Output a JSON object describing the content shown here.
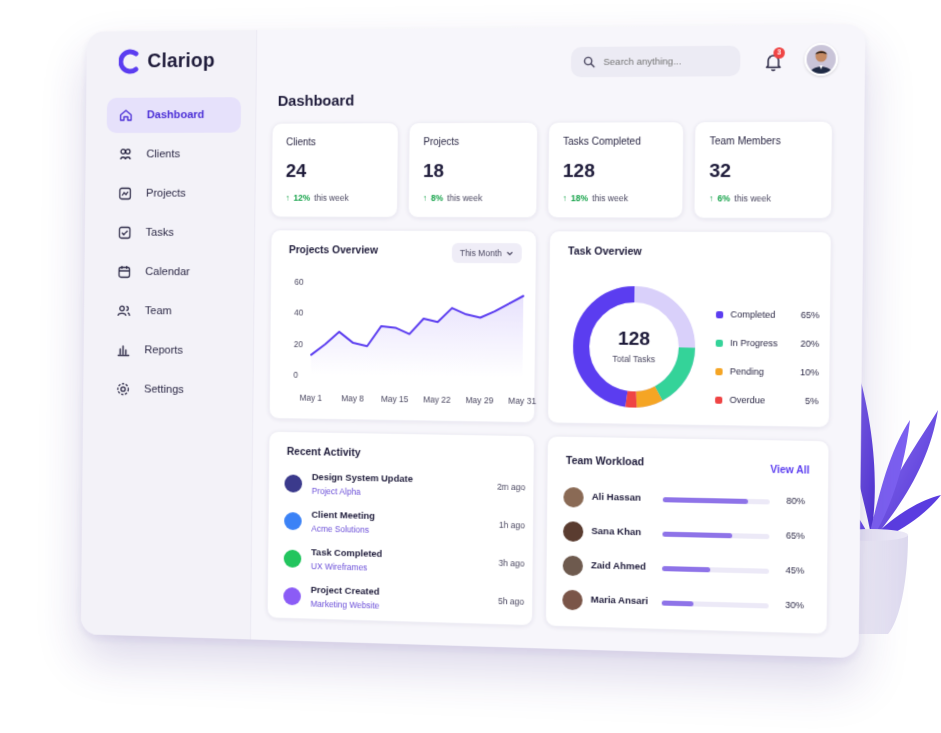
{
  "brand": {
    "name": "Clariop"
  },
  "sidebar": {
    "items": [
      {
        "label": "Dashboard",
        "icon": "home-icon",
        "active": true
      },
      {
        "label": "Clients",
        "icon": "clients-icon"
      },
      {
        "label": "Projects",
        "icon": "projects-icon"
      },
      {
        "label": "Tasks",
        "icon": "tasks-icon"
      },
      {
        "label": "Calendar",
        "icon": "calendar-icon"
      },
      {
        "label": "Team",
        "icon": "team-icon"
      },
      {
        "label": "Reports",
        "icon": "reports-icon"
      },
      {
        "label": "Settings",
        "icon": "settings-icon"
      }
    ]
  },
  "header": {
    "search_placeholder": "Search anything...",
    "notification_count": "3",
    "page_title": "Dashboard"
  },
  "stats": [
    {
      "label": "Clients",
      "value": "24",
      "delta": "12%",
      "period": "this week"
    },
    {
      "label": "Projects",
      "value": "18",
      "delta": "8%",
      "period": "this week"
    },
    {
      "label": "Tasks Completed",
      "value": "128",
      "delta": "18%",
      "period": "this week"
    },
    {
      "label": "Team Members",
      "value": "32",
      "delta": "6%",
      "period": "this week"
    }
  ],
  "projects_overview": {
    "title": "Projects Overview",
    "range_label": "This Month"
  },
  "chart_data": {
    "type": "area",
    "title": "Projects Overview",
    "xlabel": "",
    "ylabel": "",
    "ylim": [
      0,
      60
    ],
    "yticks": [
      "60",
      "40",
      "20",
      "0"
    ],
    "categories": [
      "May 1",
      "May 8",
      "May 15",
      "May 22",
      "May 29",
      "May 31"
    ],
    "x": [
      0,
      1,
      2,
      3,
      4,
      5,
      6,
      7,
      8,
      9,
      10,
      11,
      12,
      13,
      14,
      15
    ],
    "series": [
      {
        "values": [
          13,
          20,
          28,
          21,
          19,
          32,
          31,
          27,
          37,
          35,
          44,
          40,
          38,
          42,
          47,
          52
        ]
      }
    ],
    "grid": false
  },
  "task_overview": {
    "title": "Task Overview",
    "center_value": "128",
    "center_label": "Total Tasks",
    "segments": [
      {
        "label": "Completed",
        "pct": "65%",
        "value": 65,
        "color": "#5b3df0"
      },
      {
        "label": "In Progress",
        "pct": "20%",
        "value": 20,
        "color": "#34d399"
      },
      {
        "label": "Pending",
        "pct": "10%",
        "value": 10,
        "color": "#f5a524"
      },
      {
        "label": "Overdue",
        "pct": "5%",
        "value": 5,
        "color": "#ef4444"
      }
    ],
    "remainder_color": "#d9d0fa"
  },
  "recent_activity": {
    "title": "Recent Activity",
    "items": [
      {
        "title": "Design System Update",
        "sub": "Project Alpha",
        "time": "2m ago",
        "color": "#3b3a8c"
      },
      {
        "title": "Client Meeting",
        "sub": "Acme Solutions",
        "time": "1h ago",
        "color": "#3b82f6"
      },
      {
        "title": "Task Completed",
        "sub": "UX Wireframes",
        "time": "3h ago",
        "color": "#22c55e"
      },
      {
        "title": "Project Created",
        "sub": "Marketing Website",
        "time": "5h ago",
        "color": "#8b5cf6"
      }
    ]
  },
  "team_workload": {
    "title": "Team Workload",
    "view_all": "View All",
    "members": [
      {
        "name": "Ali Hassan",
        "pct": "80%",
        "value": 0.8
      },
      {
        "name": "Sana Khan",
        "pct": "65%",
        "value": 0.65
      },
      {
        "name": "Zaid Ahmed",
        "pct": "45%",
        "value": 0.45
      },
      {
        "name": "Maria Ansari",
        "pct": "30%",
        "value": 0.3
      }
    ]
  }
}
